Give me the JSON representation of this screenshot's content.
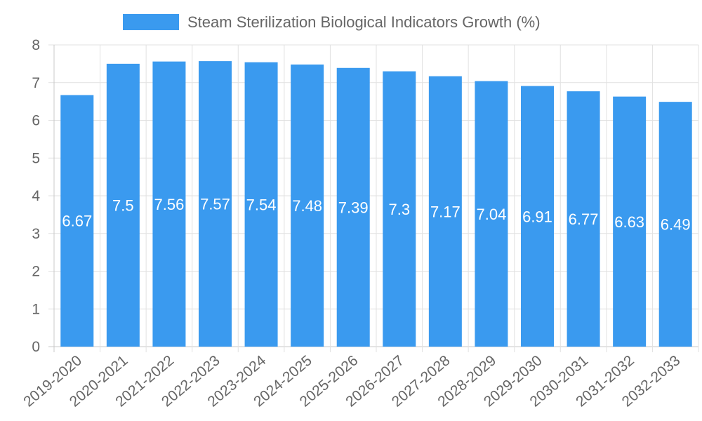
{
  "chart_data": {
    "type": "bar",
    "title": "",
    "legend": {
      "label": "Steam Sterilization Biological Indicators Growth (%)",
      "color": "#3a9aef",
      "position": "top-center"
    },
    "categories": [
      "2019-2020",
      "2020-2021",
      "2021-2022",
      "2022-2023",
      "2023-2024",
      "2024-2025",
      "2025-2026",
      "2026-2027",
      "2027-2028",
      "2028-2029",
      "2029-2030",
      "2030-2031",
      "2031-2032",
      "2032-2033"
    ],
    "values": [
      6.67,
      7.5,
      7.56,
      7.57,
      7.54,
      7.48,
      7.39,
      7.3,
      7.17,
      7.04,
      6.91,
      6.77,
      6.63,
      6.49
    ],
    "data_labels": [
      "6.67",
      "7.5",
      "7.56",
      "7.57",
      "7.54",
      "7.48",
      "7.39",
      "7.3",
      "7.17",
      "7.04",
      "6.91",
      "6.77",
      "6.63",
      "6.49"
    ],
    "y_ticks": [
      "0",
      "1",
      "2",
      "3",
      "4",
      "5",
      "6",
      "7",
      "8"
    ],
    "ylim": [
      0,
      8
    ],
    "xlabel": "",
    "ylabel": "",
    "grid": true,
    "bar_color": "#3a9aef",
    "label_color": "#ffffff"
  }
}
